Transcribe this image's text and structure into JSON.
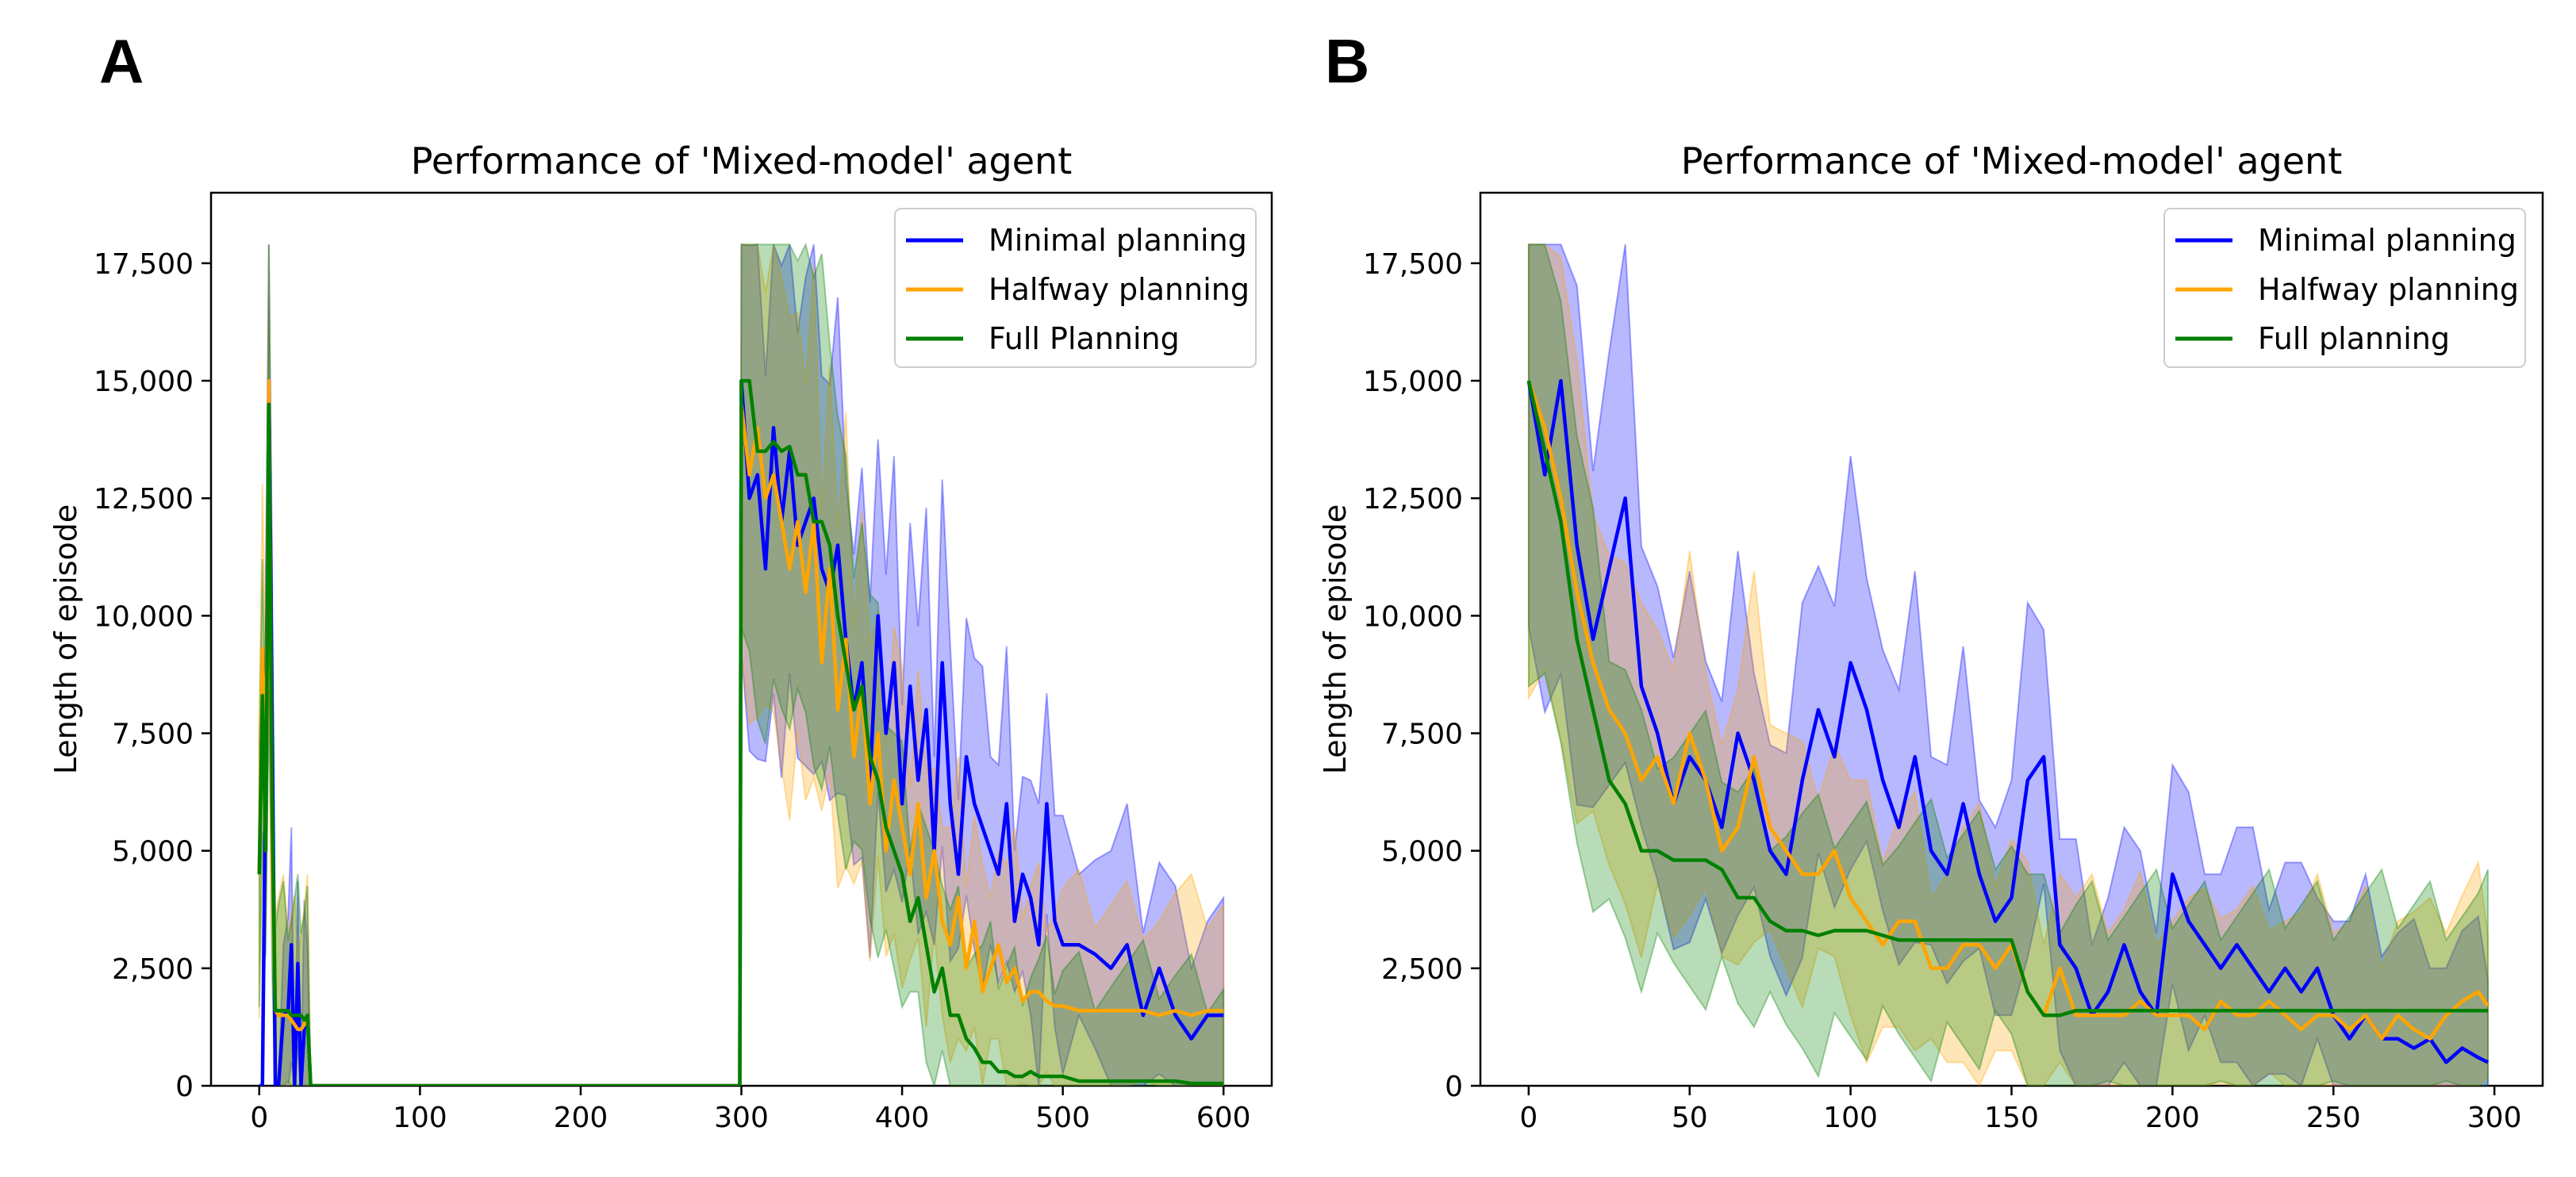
{
  "panels": [
    {
      "letter": "A"
    },
    {
      "letter": "B"
    }
  ],
  "chart_data": [
    {
      "type": "line",
      "title": "Performance of 'Mixed-model' agent",
      "xlabel": "",
      "ylabel": "Length of episode",
      "xlim": [
        -30,
        630
      ],
      "ylim": [
        0,
        19000
      ],
      "xticks": [
        0,
        100,
        200,
        300,
        400,
        500,
        600
      ],
      "yticks": [
        0,
        2500,
        5000,
        7500,
        10000,
        12500,
        15000,
        17500
      ],
      "ytick_labels": [
        "0",
        "2,500",
        "5,000",
        "7,500",
        "10,000",
        "12,500",
        "15,000",
        "17,500"
      ],
      "legend_position": "top-right",
      "series": [
        {
          "name": "Minimal planning",
          "color": "#0000ff",
          "x": [
            0,
            2,
            4,
            6,
            8,
            10,
            12,
            15,
            18,
            20,
            22,
            24,
            26,
            28,
            30,
            32,
            34,
            36,
            40,
            100,
            200,
            299,
            300,
            305,
            310,
            315,
            320,
            325,
            330,
            335,
            340,
            345,
            350,
            355,
            360,
            365,
            370,
            375,
            380,
            385,
            390,
            395,
            400,
            405,
            410,
            415,
            420,
            425,
            430,
            435,
            440,
            445,
            450,
            455,
            460,
            465,
            470,
            475,
            480,
            485,
            490,
            495,
            500,
            510,
            520,
            530,
            540,
            550,
            560,
            570,
            580,
            590,
            600
          ],
          "y": [
            0,
            0,
            7000,
            15000,
            8000,
            0,
            0,
            1500,
            1600,
            3000,
            0,
            2600,
            0,
            1200,
            1500,
            0,
            0,
            0,
            0,
            0,
            0,
            0,
            15000,
            12500,
            13000,
            11000,
            14000,
            12000,
            13500,
            11500,
            12000,
            12500,
            11000,
            10500,
            11500,
            9500,
            8000,
            9000,
            6500,
            10000,
            7500,
            9000,
            6000,
            8500,
            6500,
            8000,
            5000,
            9000,
            6000,
            4500,
            7000,
            6000,
            5500,
            5000,
            4500,
            6000,
            3500,
            4500,
            4000,
            3000,
            6000,
            3500,
            3000,
            3000,
            2800,
            2500,
            3000,
            1500,
            2500,
            1500,
            1000,
            1500,
            1500
          ]
        },
        {
          "name": "Halfway planning",
          "color": "#ffa500",
          "x": [
            0,
            2,
            4,
            6,
            8,
            10,
            12,
            15,
            18,
            20,
            22,
            24,
            26,
            28,
            30,
            32,
            34,
            36,
            40,
            100,
            200,
            299,
            300,
            305,
            310,
            315,
            320,
            325,
            330,
            335,
            340,
            345,
            350,
            355,
            360,
            365,
            370,
            375,
            380,
            385,
            390,
            395,
            400,
            405,
            410,
            415,
            420,
            425,
            430,
            435,
            440,
            445,
            450,
            455,
            460,
            465,
            470,
            475,
            480,
            485,
            490,
            495,
            500,
            510,
            520,
            530,
            540,
            550,
            560,
            570,
            580,
            590,
            600
          ],
          "y": [
            4500,
            9300,
            6000,
            15000,
            5000,
            1600,
            1500,
            1500,
            1500,
            1400,
            1300,
            1200,
            1200,
            1300,
            1500,
            0,
            0,
            0,
            0,
            0,
            0,
            0,
            14500,
            13000,
            14000,
            12500,
            13000,
            12000,
            11000,
            12000,
            10500,
            12000,
            9000,
            11000,
            8000,
            9500,
            7000,
            8500,
            6000,
            7500,
            5000,
            6500,
            5500,
            4500,
            6000,
            4000,
            5000,
            3500,
            3000,
            4000,
            2500,
            3500,
            2000,
            2500,
            3000,
            2200,
            2500,
            1800,
            2000,
            2000,
            1800,
            1700,
            1700,
            1600,
            1600,
            1600,
            1600,
            1600,
            1500,
            1600,
            1500,
            1600,
            1600
          ]
        },
        {
          "name": "Full Planning",
          "color": "#008000",
          "x": [
            0,
            2,
            4,
            6,
            8,
            10,
            12,
            15,
            18,
            20,
            22,
            24,
            26,
            28,
            30,
            32,
            34,
            36,
            40,
            100,
            200,
            299,
            300,
            305,
            310,
            315,
            320,
            325,
            330,
            335,
            340,
            345,
            350,
            355,
            360,
            365,
            370,
            375,
            380,
            385,
            390,
            395,
            400,
            405,
            410,
            415,
            420,
            425,
            430,
            435,
            440,
            445,
            450,
            455,
            460,
            465,
            470,
            475,
            480,
            485,
            490,
            495,
            500,
            510,
            520,
            530,
            540,
            550,
            560,
            570,
            580,
            590,
            600
          ],
          "y": [
            4500,
            8300,
            5000,
            14500,
            6000,
            1600,
            1600,
            1600,
            1600,
            1500,
            1500,
            1500,
            1500,
            1400,
            1500,
            0,
            0,
            0,
            0,
            0,
            0,
            0,
            15000,
            15000,
            13500,
            13500,
            13700,
            13500,
            13600,
            13000,
            13000,
            12000,
            12000,
            11500,
            10000,
            9000,
            8000,
            8500,
            7000,
            6500,
            5500,
            5000,
            4500,
            3500,
            4000,
            3000,
            2000,
            2500,
            1500,
            1500,
            1000,
            800,
            500,
            500,
            300,
            300,
            200,
            200,
            300,
            200,
            200,
            200,
            200,
            100,
            100,
            100,
            100,
            100,
            100,
            100,
            50,
            50,
            50
          ]
        }
      ]
    },
    {
      "type": "line",
      "title": "Performance of 'Mixed-model' agent",
      "xlabel": "",
      "ylabel": "Length of episode",
      "xlim": [
        -15,
        315
      ],
      "ylim": [
        0,
        19000
      ],
      "xticks": [
        0,
        50,
        100,
        150,
        200,
        250,
        300
      ],
      "yticks": [
        0,
        2500,
        5000,
        7500,
        10000,
        12500,
        15000,
        17500
      ],
      "ytick_labels": [
        "0",
        "2,500",
        "5,000",
        "7,500",
        "10,000",
        "12,500",
        "15,000",
        "17,500"
      ],
      "legend_position": "top-right",
      "series": [
        {
          "name": "Minimal planning",
          "color": "#0000ff",
          "x": [
            0,
            5,
            10,
            15,
            20,
            25,
            30,
            35,
            40,
            45,
            50,
            55,
            60,
            65,
            70,
            75,
            80,
            85,
            90,
            95,
            100,
            105,
            110,
            115,
            120,
            125,
            130,
            135,
            140,
            145,
            150,
            155,
            160,
            165,
            170,
            175,
            180,
            185,
            190,
            195,
            200,
            205,
            210,
            215,
            220,
            225,
            230,
            235,
            240,
            245,
            250,
            255,
            260,
            265,
            270,
            275,
            280,
            285,
            290,
            295,
            298
          ],
          "y": [
            15000,
            13000,
            15000,
            11500,
            9500,
            11000,
            12500,
            8500,
            7500,
            6000,
            7000,
            6500,
            5500,
            7500,
            6500,
            5000,
            4500,
            6500,
            8000,
            7000,
            9000,
            8000,
            6500,
            5500,
            7000,
            5000,
            4500,
            6000,
            4500,
            3500,
            4000,
            6500,
            7000,
            3000,
            2500,
            1500,
            2000,
            3000,
            2000,
            1500,
            4500,
            3500,
            3000,
            2500,
            3000,
            2500,
            2000,
            2500,
            2000,
            2500,
            1500,
            1000,
            1500,
            1000,
            1000,
            800,
            1000,
            500,
            800,
            600,
            500
          ]
        },
        {
          "name": "Halfway planning",
          "color": "#ffa500",
          "x": [
            0,
            5,
            10,
            15,
            20,
            25,
            30,
            35,
            40,
            45,
            50,
            55,
            60,
            65,
            70,
            75,
            80,
            85,
            90,
            95,
            100,
            105,
            110,
            115,
            120,
            125,
            130,
            135,
            140,
            145,
            150,
            155,
            160,
            165,
            170,
            175,
            180,
            185,
            190,
            195,
            200,
            205,
            210,
            215,
            220,
            225,
            230,
            235,
            240,
            245,
            250,
            255,
            260,
            265,
            270,
            275,
            280,
            285,
            290,
            295,
            298
          ],
          "y": [
            15000,
            14000,
            12500,
            10500,
            9000,
            8000,
            7500,
            6500,
            7000,
            6000,
            7500,
            6500,
            5000,
            5500,
            7000,
            5500,
            5000,
            4500,
            4500,
            5000,
            4000,
            3500,
            3000,
            3500,
            3500,
            2500,
            2500,
            3000,
            3000,
            2500,
            3000,
            2000,
            1500,
            2500,
            1500,
            1500,
            1500,
            1500,
            1800,
            1500,
            1500,
            1500,
            1200,
            1800,
            1500,
            1500,
            1800,
            1500,
            1200,
            1500,
            1500,
            1200,
            1500,
            1000,
            1500,
            1200,
            1000,
            1500,
            1800,
            2000,
            1700
          ]
        },
        {
          "name": "Full planning",
          "color": "#008000",
          "x": [
            0,
            5,
            10,
            15,
            20,
            25,
            30,
            35,
            40,
            45,
            50,
            55,
            60,
            65,
            70,
            75,
            80,
            85,
            90,
            95,
            100,
            105,
            110,
            115,
            120,
            125,
            130,
            135,
            140,
            145,
            150,
            155,
            160,
            165,
            170,
            175,
            180,
            185,
            190,
            195,
            200,
            205,
            210,
            215,
            220,
            225,
            230,
            235,
            240,
            245,
            250,
            255,
            260,
            265,
            270,
            275,
            280,
            285,
            290,
            295,
            298
          ],
          "y": [
            15000,
            13500,
            12000,
            9500,
            8000,
            6500,
            6000,
            5000,
            5000,
            4800,
            4800,
            4800,
            4600,
            4000,
            4000,
            3500,
            3300,
            3300,
            3200,
            3300,
            3300,
            3300,
            3200,
            3100,
            3100,
            3100,
            3100,
            3100,
            3100,
            3100,
            3100,
            2000,
            1500,
            1500,
            1600,
            1600,
            1600,
            1600,
            1600,
            1600,
            1600,
            1600,
            1600,
            1600,
            1600,
            1600,
            1600,
            1600,
            1600,
            1600,
            1600,
            1600,
            1600,
            1600,
            1600,
            1600,
            1600,
            1600,
            1600,
            1600,
            1600
          ]
        }
      ]
    }
  ]
}
